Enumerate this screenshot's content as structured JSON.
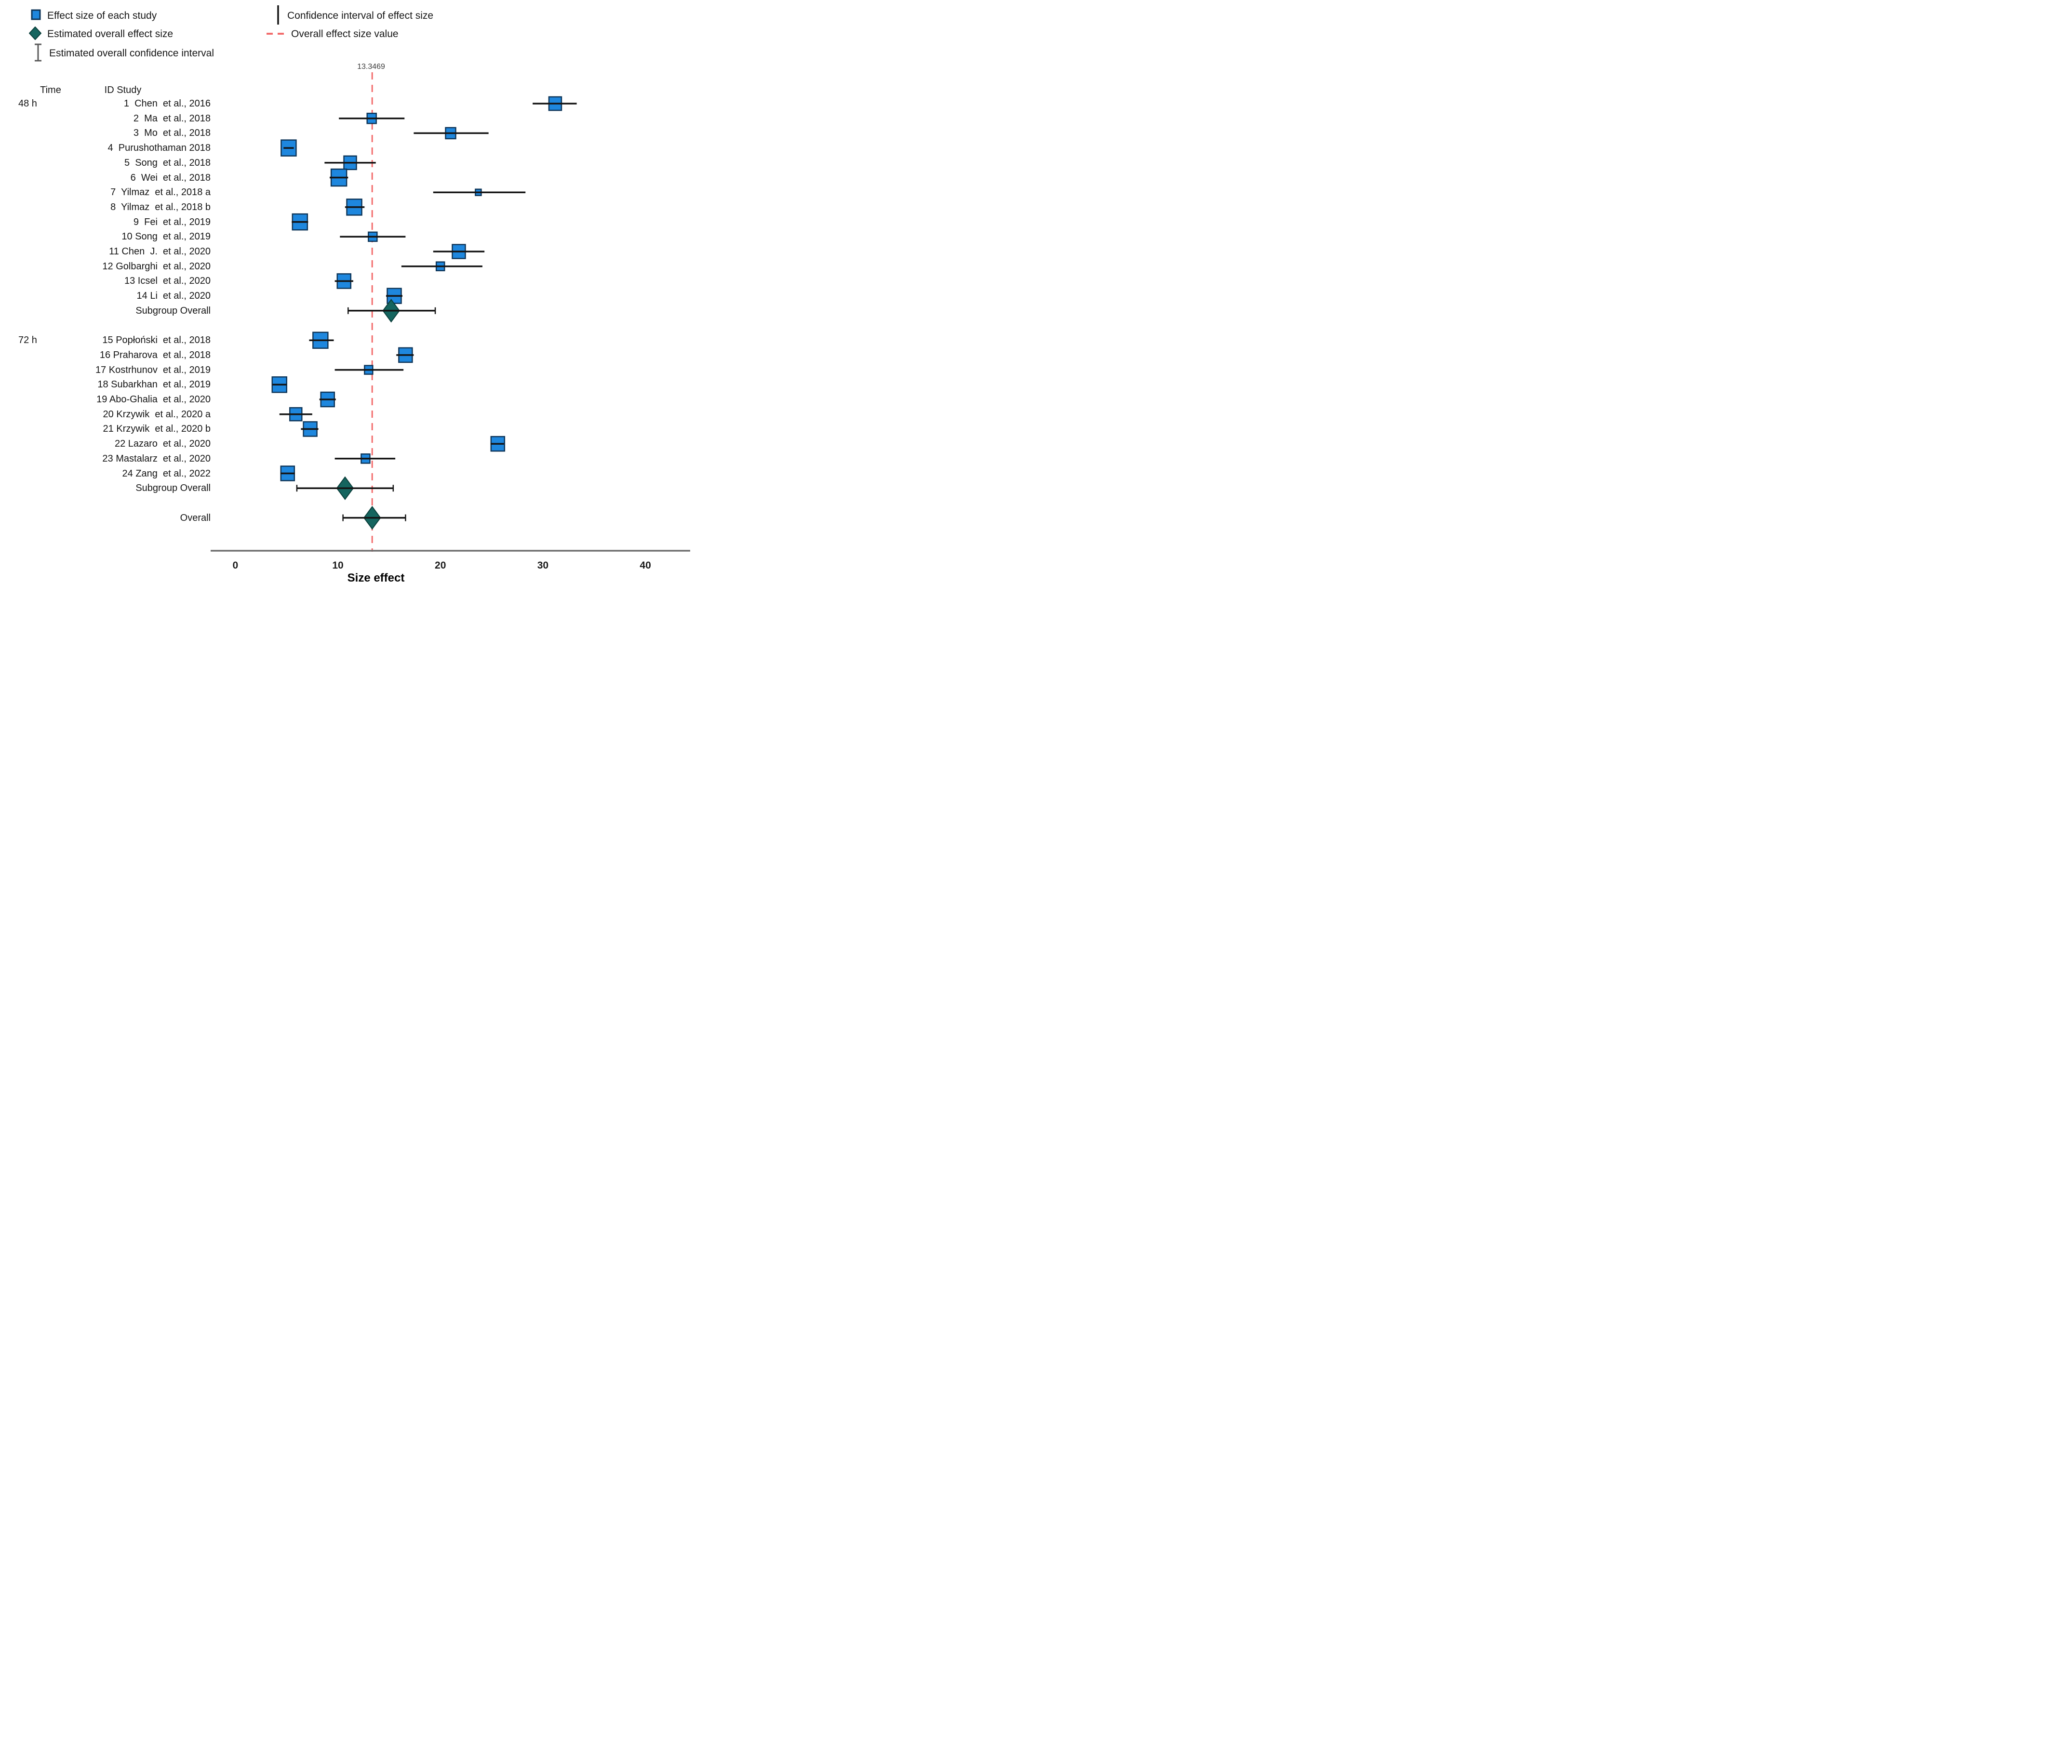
{
  "legend": {
    "left": [
      {
        "icon": "blue-square-icon",
        "label": "Effect size of each study"
      },
      {
        "icon": "teal-diamond-icon",
        "label": "Estimated overall effect size"
      },
      {
        "icon": "i-beam-icon",
        "label": "Estimated overall confidence interval"
      }
    ],
    "right": [
      {
        "icon": "vertical-line-icon",
        "label": "Confidence interval of effect size"
      },
      {
        "icon": "red-dashed-line-icon",
        "label": "Overall effect size value"
      }
    ]
  },
  "columns": {
    "time": "Time",
    "study": "ID Study"
  },
  "overall_label": "13.3469",
  "colors": {
    "blue": "#1E87DE",
    "blue_border": "#0E3558",
    "teal": "#15655F",
    "teal_border": "#0B3F3B",
    "red": "#F26B6B",
    "axis": "#6E6E6E",
    "ci": "#141414"
  },
  "chart_data": {
    "type": "forest",
    "x_axis": {
      "label": "Size effect",
      "ticks": [
        0,
        10,
        20,
        30,
        40
      ],
      "min": 0,
      "max": 40
    },
    "overall_effect_value": 13.3469,
    "groups": [
      {
        "time": "48 h",
        "studies": [
          {
            "id": 1,
            "label": "1  Chen  et al., 2016",
            "effect": 31.2,
            "ci": [
              29.0,
              33.3
            ],
            "box": 26
          },
          {
            "id": 2,
            "label": "2  Ma  et al., 2018",
            "effect": 13.3,
            "ci": [
              10.1,
              16.5
            ],
            "box": 19
          },
          {
            "id": 3,
            "label": "3  Mo  et al., 2018",
            "effect": 21.0,
            "ci": [
              17.4,
              24.7
            ],
            "box": 21
          },
          {
            "id": 4,
            "label": "4  Purushothaman 2018",
            "effect": 5.2,
            "ci": [
              4.7,
              5.7
            ],
            "box": 31
          },
          {
            "id": 5,
            "label": "5  Song  et al., 2018",
            "effect": 11.2,
            "ci": [
              8.7,
              13.7
            ],
            "box": 26
          },
          {
            "id": 6,
            "label": "6  Wei  et al., 2018",
            "effect": 10.1,
            "ci": [
              9.2,
              11.0
            ],
            "box": 32
          },
          {
            "id": 7,
            "label": "7  Yilmaz  et al., 2018 a",
            "effect": 23.7,
            "ci": [
              19.3,
              28.3
            ],
            "box": 12
          },
          {
            "id": 8,
            "label": "8  Yilmaz  et al., 2018 b",
            "effect": 11.6,
            "ci": [
              10.7,
              12.6
            ],
            "box": 31
          },
          {
            "id": 9,
            "label": "9  Fei  et al., 2019",
            "effect": 6.3,
            "ci": [
              5.5,
              7.1
            ],
            "box": 31
          },
          {
            "id": 10,
            "label": "10 Song  et al., 2019",
            "effect": 13.4,
            "ci": [
              10.2,
              16.6
            ],
            "box": 18
          },
          {
            "id": 11,
            "label": "11 Chen  J.  et al., 2020",
            "effect": 21.8,
            "ci": [
              19.3,
              24.3
            ],
            "box": 27
          },
          {
            "id": 12,
            "label": "12 Golbarghi  et al., 2020",
            "effect": 20.0,
            "ci": [
              16.2,
              24.1
            ],
            "box": 17
          },
          {
            "id": 13,
            "label": "13 Icsel  et al., 2020",
            "effect": 10.6,
            "ci": [
              9.7,
              11.5
            ],
            "box": 28
          },
          {
            "id": 14,
            "label": "14 Li  et al., 2020",
            "effect": 15.5,
            "ci": [
              14.7,
              16.3
            ],
            "box": 29
          }
        ],
        "subgroup": {
          "label": "Subgroup Overall",
          "effect": 15.2,
          "ci": [
            11.0,
            19.5
          ]
        }
      },
      {
        "time": "72 h",
        "studies": [
          {
            "id": 15,
            "label": "15 Popłoński  et al., 2018",
            "effect": 8.3,
            "ci": [
              7.2,
              9.6
            ],
            "box": 31
          },
          {
            "id": 16,
            "label": "16 Praharova  et al., 2018",
            "effect": 16.6,
            "ci": [
              15.7,
              17.4
            ],
            "box": 28
          },
          {
            "id": 17,
            "label": "17 Kostrhunov  et al., 2019",
            "effect": 13.0,
            "ci": [
              9.7,
              16.4
            ],
            "box": 17
          },
          {
            "id": 18,
            "label": "18 Subarkhan  et al., 2019",
            "effect": 4.3,
            "ci": [
              3.6,
              5.0
            ],
            "box": 30
          },
          {
            "id": 19,
            "label": "19 Abo-Ghalia  et al., 2020",
            "effect": 9.0,
            "ci": [
              8.2,
              9.8
            ],
            "box": 28
          },
          {
            "id": 20,
            "label": "20 Krzywik  et al., 2020 a",
            "effect": 5.9,
            "ci": [
              4.3,
              7.5
            ],
            "box": 25
          },
          {
            "id": 21,
            "label": "21 Krzywik  et al., 2020 b",
            "effect": 7.3,
            "ci": [
              6.4,
              8.1
            ],
            "box": 28
          },
          {
            "id": 22,
            "label": "22 Lazaro  et al., 2020",
            "effect": 25.6,
            "ci": [
              24.9,
              26.2
            ],
            "box": 28
          },
          {
            "id": 23,
            "label": "23 Mastalarz  et al., 2020",
            "effect": 12.7,
            "ci": [
              9.7,
              15.6
            ],
            "box": 18
          },
          {
            "id": 24,
            "label": "24 Zang  et al., 2022",
            "effect": 5.1,
            "ci": [
              4.4,
              5.8
            ],
            "box": 28
          }
        ],
        "subgroup": {
          "label": "Subgroup Overall",
          "effect": 10.7,
          "ci": [
            6.0,
            15.4
          ]
        }
      }
    ],
    "overall": {
      "label": "Overall",
      "effect": 13.35,
      "ci": [
        10.5,
        16.6
      ]
    }
  }
}
